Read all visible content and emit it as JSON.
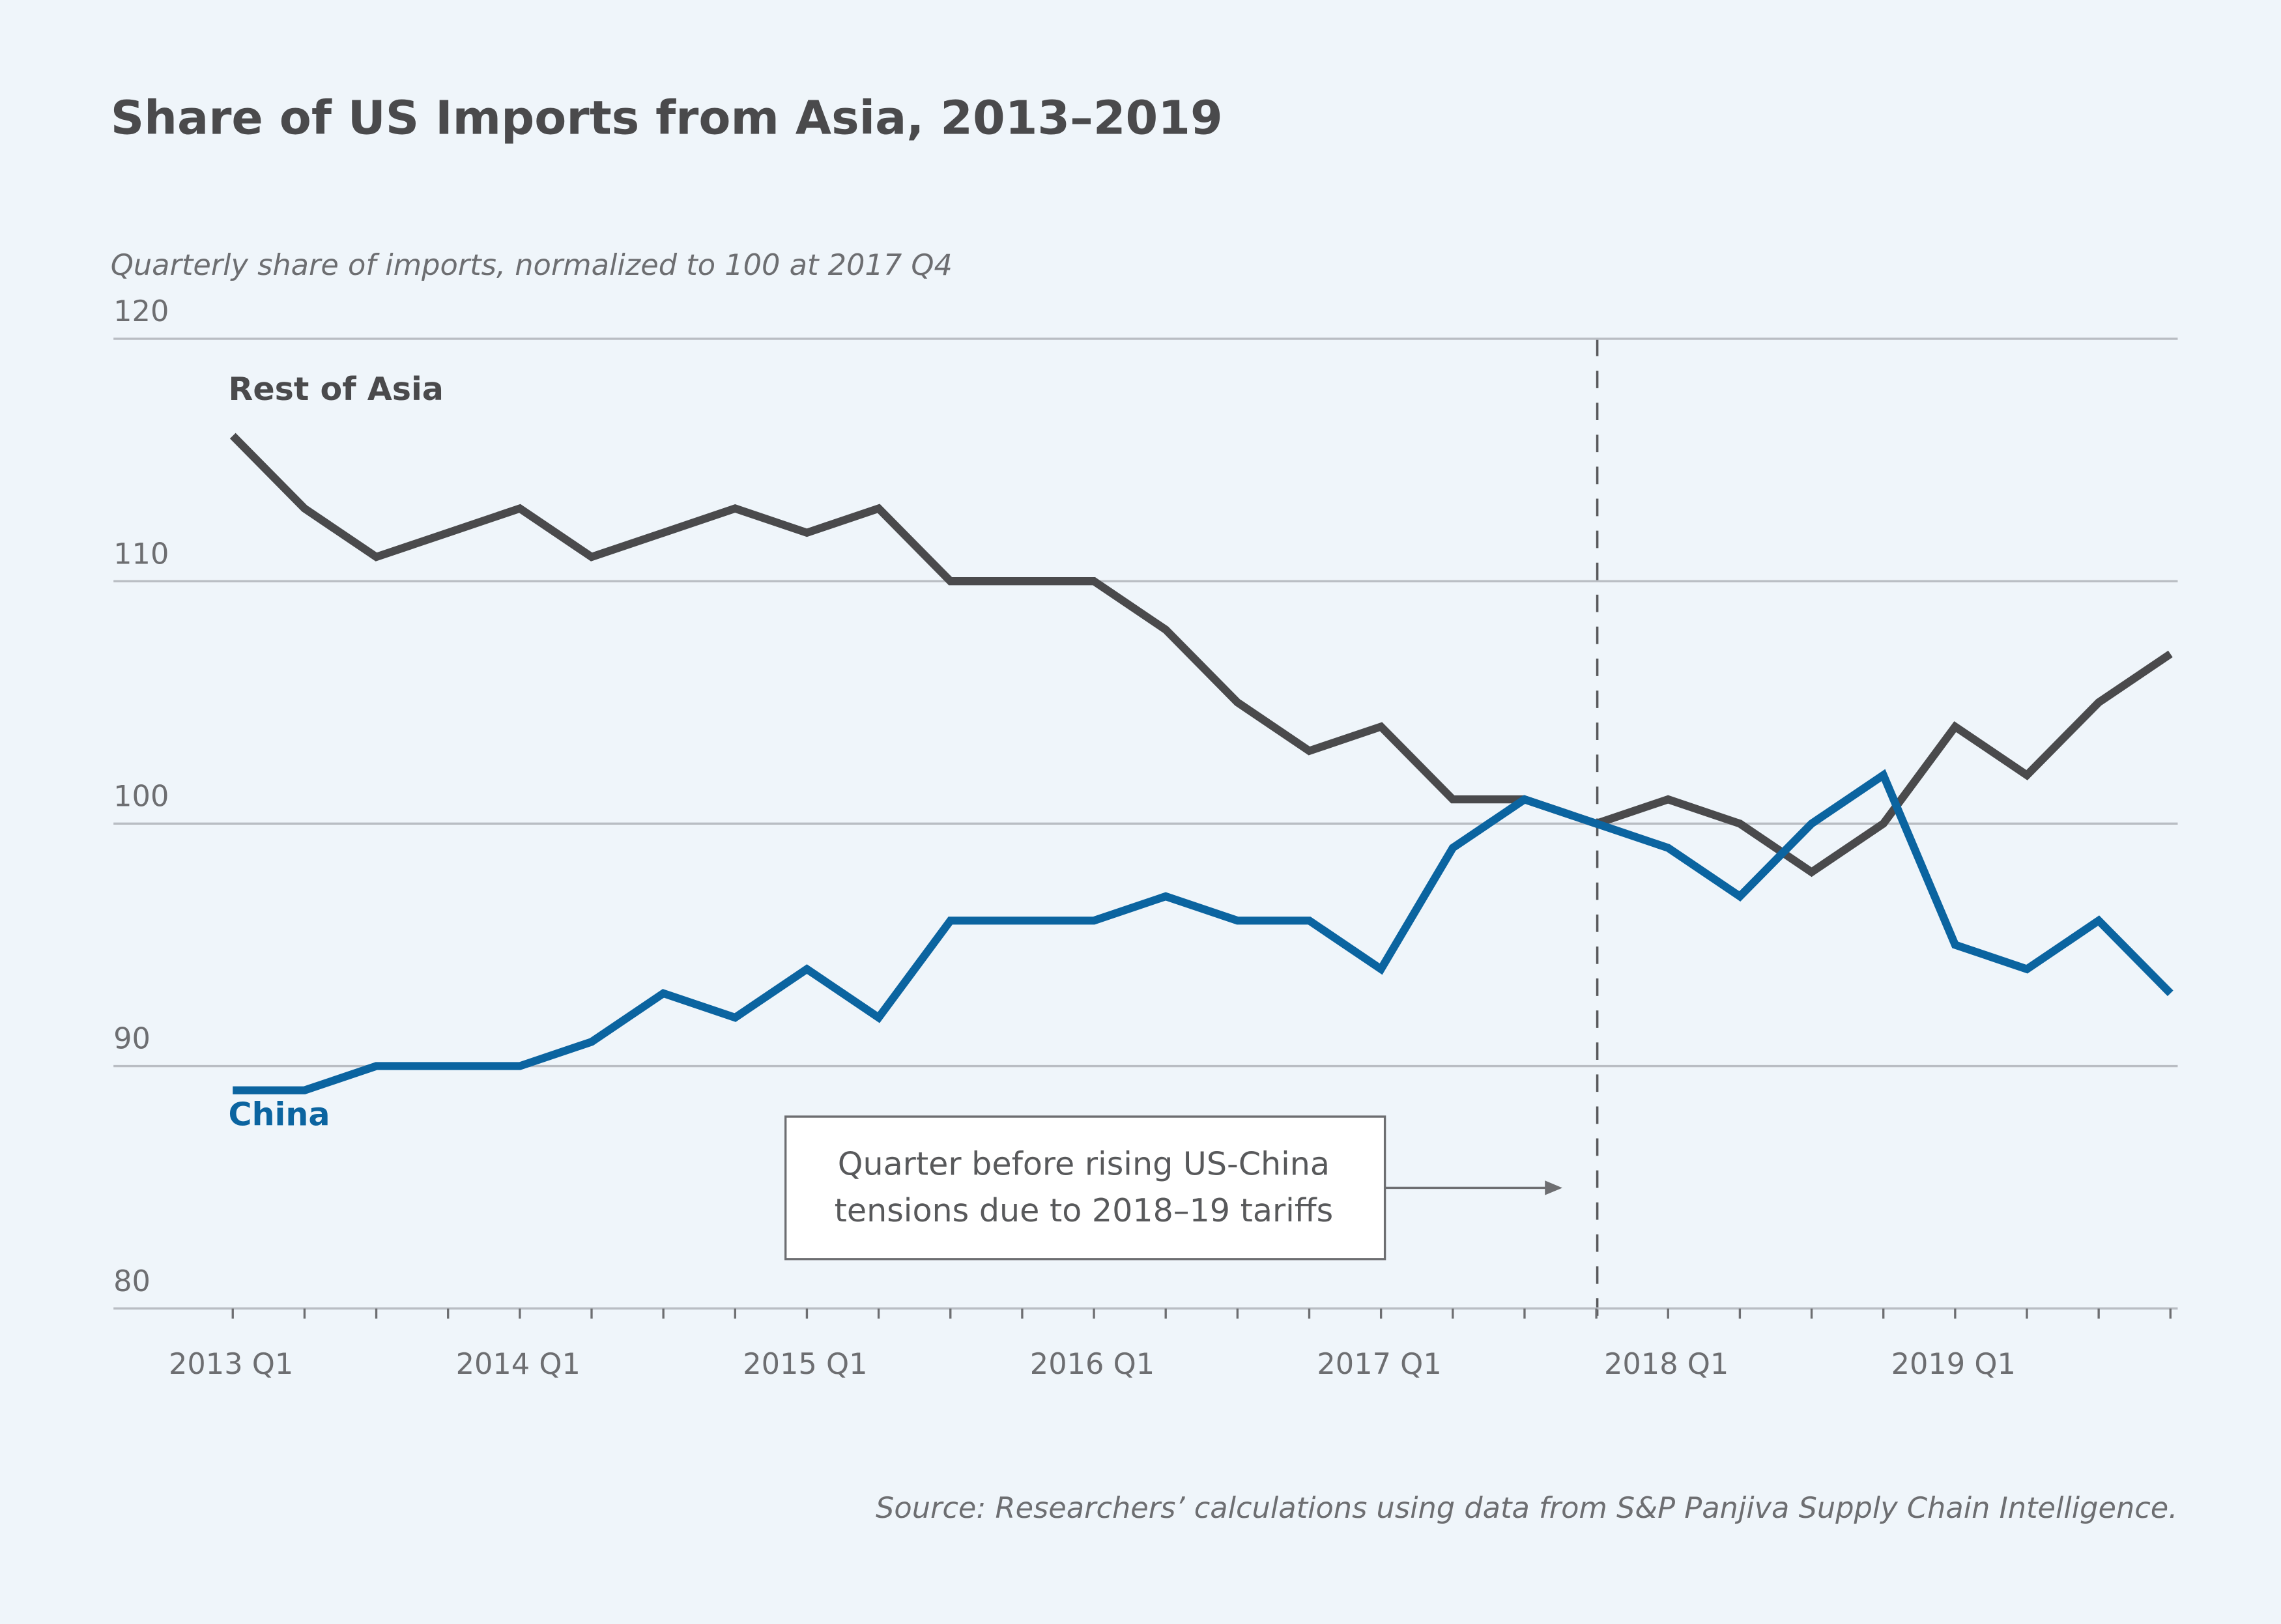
{
  "chart_data": {
    "type": "line",
    "title": "Share of US Imports from Asia, 2013–2019",
    "subtitle": "Quarterly share of imports, normalized to 100 at 2017 Q4",
    "source": "Source: Researchers’ calculations using data from S&P Panjiva Supply Chain Intelligence.",
    "annotation": [
      "Quarter before rising US-China",
      "tensions due to 2018–19 tariffs"
    ],
    "categories": [
      "2013 Q1",
      null,
      null,
      null,
      "2014 Q1",
      null,
      null,
      null,
      "2015 Q1",
      null,
      null,
      null,
      "2016 Q1",
      null,
      null,
      null,
      "2017 Q1",
      null,
      null,
      null,
      "2018 Q1",
      null,
      null,
      null,
      "2019 Q1",
      null,
      null,
      null
    ],
    "series": [
      {
        "name": "Rest of Asia",
        "color": "#4a4a4c",
        "values": [
          116,
          113,
          111,
          112,
          113,
          111,
          112,
          113,
          112,
          113,
          110,
          110,
          110,
          108,
          105,
          103,
          104,
          101,
          101,
          100,
          101,
          100,
          98,
          100,
          104,
          102,
          105,
          107
        ]
      },
      {
        "name": "China",
        "color": "#0b64a0",
        "values": [
          89,
          89,
          90,
          90,
          90,
          91,
          93,
          92,
          94,
          92,
          96,
          96,
          96,
          97,
          96,
          96,
          94,
          99,
          101,
          100,
          99,
          97,
          100,
          102,
          95,
          94,
          96,
          93
        ]
      }
    ],
    "ylim": [
      80,
      120
    ],
    "yticks": [
      80,
      90,
      100,
      110,
      120
    ],
    "grid": true
  }
}
